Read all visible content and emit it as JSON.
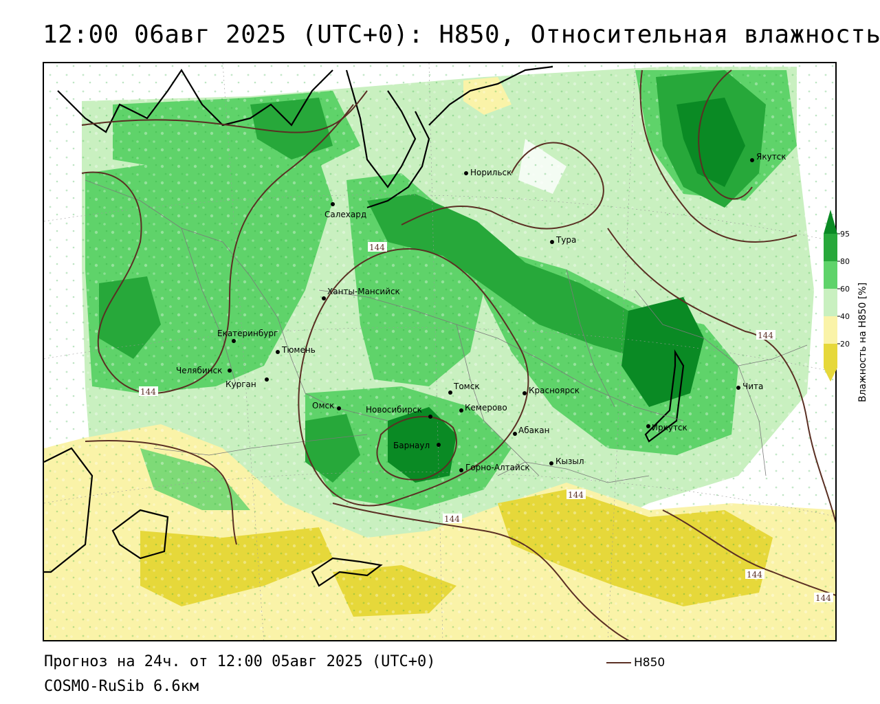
{
  "title": "12:00 06авг 2025 (UTC+0): H850, Относительная влажность",
  "colors": {
    "contour": "#5a2f23",
    "dry_dark": "#e6d83a",
    "dry_light": "#faf3a8",
    "moist_light": "#c9f0c0",
    "moist": "#5fd36a",
    "moist_dark": "#27a83a",
    "wet": "#0a8a24"
  },
  "legend": {
    "title": "Влажность на H850 [%]",
    "ticks": [
      "95",
      "80",
      "60",
      "40",
      "20"
    ]
  },
  "contour_value": "144",
  "cities": [
    {
      "name": "Салехард"
    },
    {
      "name": "Норильск"
    },
    {
      "name": "Якутск"
    },
    {
      "name": "Тура"
    },
    {
      "name": "Ханты-Мансийск"
    },
    {
      "name": "Екатеринбург"
    },
    {
      "name": "Тюмень"
    },
    {
      "name": "Челябинск"
    },
    {
      "name": "Курган"
    },
    {
      "name": "Омск"
    },
    {
      "name": "Новосибирск"
    },
    {
      "name": "Томск"
    },
    {
      "name": "Кемерово"
    },
    {
      "name": "Красноярск"
    },
    {
      "name": "Барнаул"
    },
    {
      "name": "Абакан"
    },
    {
      "name": "Горно-Алтайск"
    },
    {
      "name": "Кызыл"
    },
    {
      "name": "Иркутск"
    },
    {
      "name": "Чита"
    }
  ],
  "footer": {
    "forecast": "Прогноз на 24ч. от 12:00 05авг 2025 (UTC+0)",
    "model": "COSMO-RuSib 6.6км",
    "contour_legend": "H850"
  }
}
